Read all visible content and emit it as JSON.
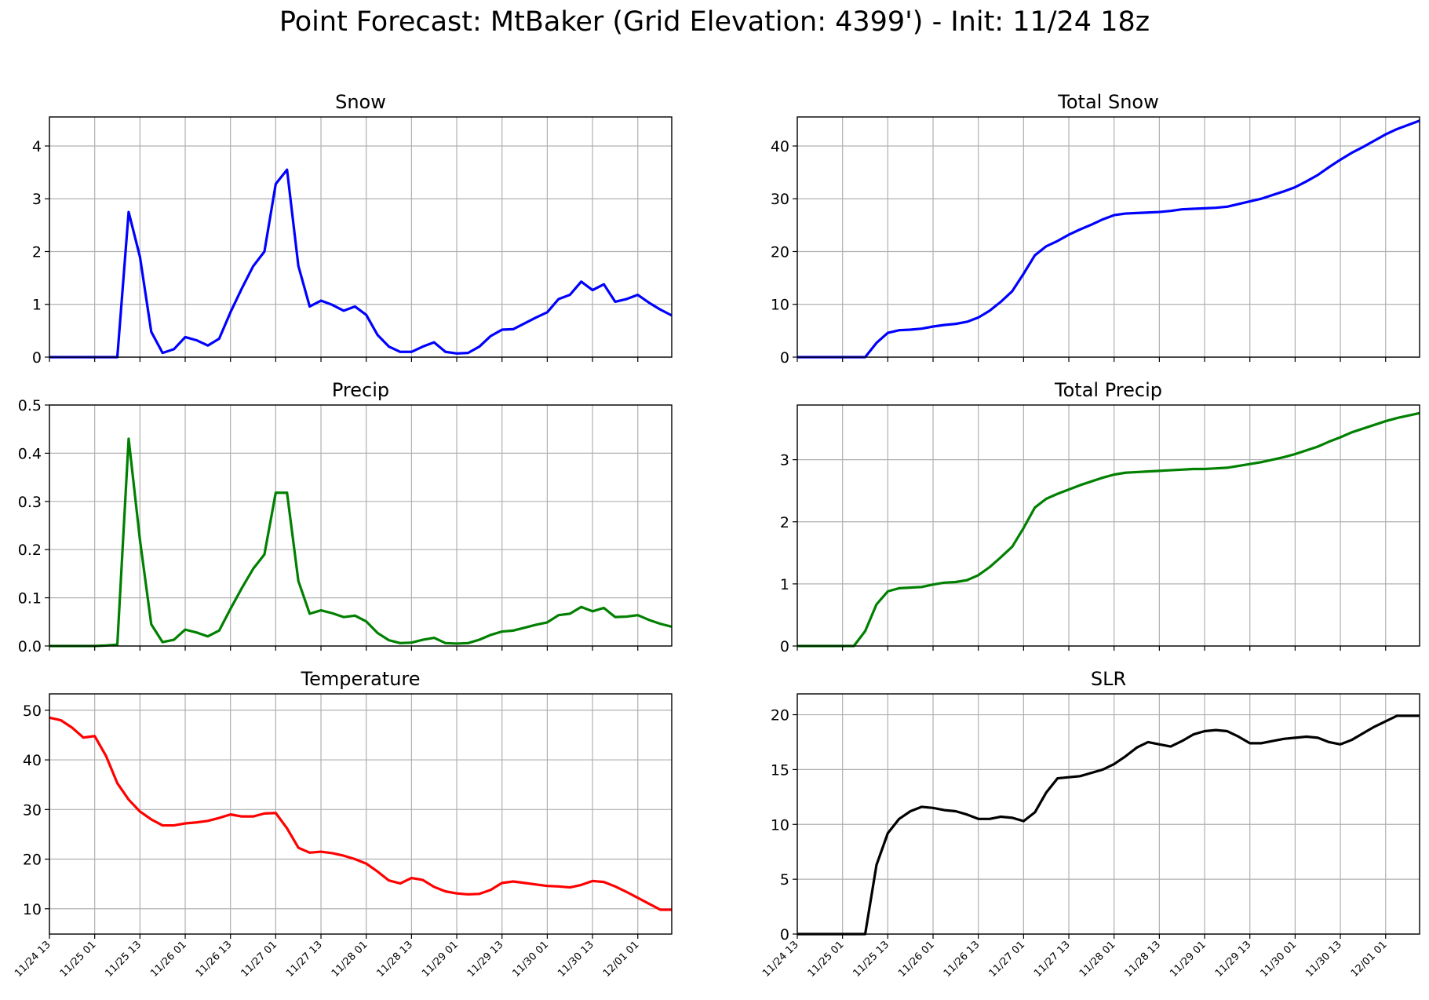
{
  "title": "Point Forecast: MtBaker (Grid Elevation: 4399') - Init: 11/24 18z",
  "chart_data": [
    {
      "type": "line",
      "title": "Snow",
      "color": "#0000ff",
      "ylim": [
        0,
        4.55
      ],
      "yticks": [
        0,
        1,
        2,
        3,
        4
      ],
      "x_start": "11/24 13",
      "x_step_hours": 3,
      "xticks": [
        "11/24 13",
        "11/25 01",
        "11/25 13",
        "11/26 01",
        "11/26 13",
        "11/27 01",
        "11/27 13",
        "11/28 01",
        "11/28 13",
        "11/29 01",
        "11/29 13",
        "11/30 01",
        "11/30 13",
        "12/01 01"
      ],
      "values": [
        0,
        0,
        0,
        0,
        0,
        0,
        0,
        2.75,
        1.9,
        0.48,
        0.08,
        0.15,
        0.38,
        0.32,
        0.22,
        0.35,
        0.85,
        1.3,
        1.72,
        2.0,
        3.28,
        3.55,
        1.73,
        0.96,
        1.07,
        0.99,
        0.88,
        0.96,
        0.8,
        0.42,
        0.2,
        0.1,
        0.1,
        0.2,
        0.28,
        0.1,
        0.07,
        0.08,
        0.2,
        0.4,
        0.52,
        0.53,
        0.64,
        0.75,
        0.85,
        1.1,
        1.18,
        1.43,
        1.27,
        1.38,
        1.05,
        1.1,
        1.18,
        1.03,
        0.9,
        0.79
      ]
    },
    {
      "type": "line",
      "title": "Total Snow",
      "color": "#0000ff",
      "ylim": [
        0,
        45.5
      ],
      "yticks": [
        0,
        10,
        20,
        30,
        40
      ],
      "x_start": "11/24 13",
      "x_step_hours": 3,
      "xticks": [
        "11/24 13",
        "11/25 01",
        "11/25 13",
        "11/26 01",
        "11/26 13",
        "11/27 01",
        "11/27 13",
        "11/28 01",
        "11/28 13",
        "11/29 01",
        "11/29 13",
        "11/30 01",
        "11/30 13",
        "12/01 01"
      ],
      "values": [
        0,
        0,
        0,
        0,
        0,
        0,
        0,
        2.7,
        4.6,
        5.1,
        5.2,
        5.4,
        5.8,
        6.1,
        6.3,
        6.7,
        7.5,
        8.8,
        10.5,
        12.5,
        15.8,
        19.3,
        21,
        22,
        23.2,
        24.2,
        25.1,
        26.1,
        26.9,
        27.2,
        27.3,
        27.4,
        27.5,
        27.7,
        28,
        28.1,
        28.2,
        28.3,
        28.5,
        29,
        29.5,
        30,
        30.7,
        31.4,
        32.2,
        33.3,
        34.5,
        36,
        37.4,
        38.7,
        39.8,
        41,
        42.2,
        43.2,
        44,
        44.8
      ]
    },
    {
      "type": "line",
      "title": "Precip",
      "color": "#008000",
      "ylim": [
        0,
        0.5
      ],
      "yticks": [
        0.0,
        0.1,
        0.2,
        0.3,
        0.4,
        0.5
      ],
      "x_start": "11/24 13",
      "x_step_hours": 3,
      "xticks": [
        "11/24 13",
        "11/25 01",
        "11/25 13",
        "11/26 01",
        "11/26 13",
        "11/27 01",
        "11/27 13",
        "11/28 01",
        "11/28 13",
        "11/29 01",
        "11/29 13",
        "11/30 01",
        "11/30 13",
        "12/01 01"
      ],
      "values": [
        0,
        0,
        0,
        0,
        0,
        0.001,
        0.003,
        0.43,
        0.22,
        0.045,
        0.008,
        0.013,
        0.034,
        0.028,
        0.02,
        0.032,
        0.077,
        0.12,
        0.16,
        0.19,
        0.318,
        0.318,
        0.135,
        0.067,
        0.074,
        0.068,
        0.06,
        0.063,
        0.051,
        0.027,
        0.012,
        0.006,
        0.007,
        0.013,
        0.017,
        0.006,
        0.005,
        0.006,
        0.013,
        0.023,
        0.03,
        0.032,
        0.038,
        0.044,
        0.049,
        0.064,
        0.067,
        0.081,
        0.072,
        0.079,
        0.06,
        0.061,
        0.064,
        0.054,
        0.046,
        0.04
      ]
    },
    {
      "type": "line",
      "title": "Total Precip",
      "color": "#008000",
      "ylim": [
        0,
        3.88
      ],
      "yticks": [
        0,
        1,
        2,
        3
      ],
      "x_start": "11/24 13",
      "x_step_hours": 3,
      "xticks": [
        "11/24 13",
        "11/25 01",
        "11/25 13",
        "11/26 01",
        "11/26 13",
        "11/27 01",
        "11/27 13",
        "11/28 01",
        "11/28 13",
        "11/29 01",
        "11/29 13",
        "11/30 01",
        "11/30 13",
        "12/01 01"
      ],
      "values": [
        0,
        0,
        0,
        0,
        0,
        0,
        0.24,
        0.67,
        0.88,
        0.93,
        0.94,
        0.95,
        0.99,
        1.02,
        1.03,
        1.06,
        1.14,
        1.27,
        1.43,
        1.6,
        1.9,
        2.23,
        2.37,
        2.45,
        2.52,
        2.59,
        2.65,
        2.71,
        2.76,
        2.79,
        2.8,
        2.81,
        2.82,
        2.83,
        2.84,
        2.85,
        2.85,
        2.86,
        2.87,
        2.9,
        2.93,
        2.96,
        3.0,
        3.04,
        3.09,
        3.15,
        3.21,
        3.29,
        3.36,
        3.44,
        3.5,
        3.56,
        3.62,
        3.67,
        3.71,
        3.75
      ]
    },
    {
      "type": "line",
      "title": "Temperature",
      "color": "#ff0000",
      "ylim": [
        4.9,
        53.3
      ],
      "yticks": [
        10,
        20,
        30,
        40,
        50
      ],
      "x_start": "11/24 13",
      "x_step_hours": 3,
      "xticks": [
        "11/24 13",
        "11/25 01",
        "11/25 13",
        "11/26 01",
        "11/26 13",
        "11/27 01",
        "11/27 13",
        "11/28 01",
        "11/28 13",
        "11/29 01",
        "11/29 13",
        "11/30 01",
        "11/30 13",
        "12/01 01"
      ],
      "values": [
        48.5,
        48.0,
        46.5,
        44.5,
        44.8,
        40.8,
        35.3,
        32.0,
        29.6,
        28.0,
        26.8,
        26.8,
        27.2,
        27.4,
        27.7,
        28.3,
        29.0,
        28.6,
        28.6,
        29.2,
        29.3,
        26.2,
        22.3,
        21.3,
        21.5,
        21.2,
        20.7,
        20.0,
        19.1,
        17.5,
        15.7,
        15.1,
        16.2,
        15.8,
        14.4,
        13.5,
        13.1,
        12.9,
        13.0,
        13.8,
        15.2,
        15.5,
        15.2,
        14.9,
        14.6,
        14.5,
        14.3,
        14.8,
        15.6,
        15.4,
        14.5,
        13.4,
        12.2,
        11.0,
        9.8,
        9.8
      ]
    },
    {
      "type": "line",
      "title": "SLR",
      "color": "#000000",
      "ylim": [
        0,
        21.9
      ],
      "yticks": [
        0,
        5,
        10,
        15,
        20
      ],
      "x_start": "11/24 13",
      "x_step_hours": 3,
      "xticks": [
        "11/24 13",
        "11/25 01",
        "11/25 13",
        "11/26 01",
        "11/26 13",
        "11/27 01",
        "11/27 13",
        "11/28 01",
        "11/28 13",
        "11/29 01",
        "11/29 13",
        "11/30 01",
        "11/30 13",
        "12/01 01"
      ],
      "values": [
        0,
        0,
        0,
        0,
        0,
        0,
        0,
        6.3,
        9.2,
        10.5,
        11.2,
        11.6,
        11.5,
        11.3,
        11.2,
        10.9,
        10.5,
        10.5,
        10.7,
        10.6,
        10.3,
        11.1,
        12.9,
        14.2,
        14.3,
        14.4,
        14.7,
        15.0,
        15.5,
        16.2,
        17.0,
        17.5,
        17.3,
        17.1,
        17.6,
        18.2,
        18.5,
        18.6,
        18.5,
        18.0,
        17.4,
        17.4,
        17.6,
        17.8,
        17.9,
        18.0,
        17.9,
        17.5,
        17.3,
        17.7,
        18.3,
        18.9,
        19.4,
        19.9,
        19.9,
        19.9
      ]
    }
  ]
}
